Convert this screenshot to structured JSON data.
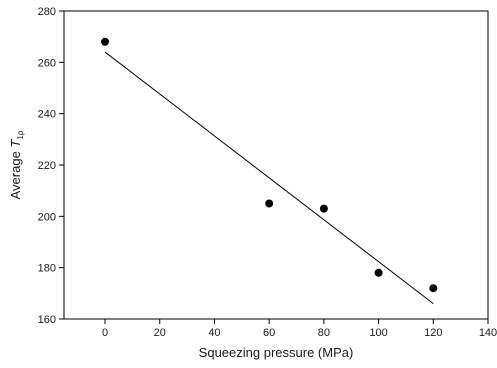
{
  "chart_data": {
    "type": "scatter",
    "xlabel": "Squeezing pressure (MPa)",
    "ylabel": {
      "prefix": "Average ",
      "symbol": "T",
      "subscript": "1ρ"
    },
    "xlim": [
      -15,
      140
    ],
    "ylim": [
      160,
      280
    ],
    "x_ticks": [
      0,
      20,
      40,
      60,
      80,
      100,
      120,
      140
    ],
    "y_ticks": [
      160,
      180,
      200,
      220,
      240,
      260,
      280
    ],
    "grid": false,
    "series": [
      {
        "points": [
          {
            "x": 0,
            "y": 268
          },
          {
            "x": 60,
            "y": 205
          },
          {
            "x": 80,
            "y": 203
          },
          {
            "x": 100,
            "y": 178
          },
          {
            "x": 120,
            "y": 172
          }
        ],
        "marker_color": "#000000"
      }
    ],
    "fit_line": {
      "x": [
        0,
        120
      ],
      "y": [
        264,
        166
      ],
      "color": "#000000"
    }
  }
}
